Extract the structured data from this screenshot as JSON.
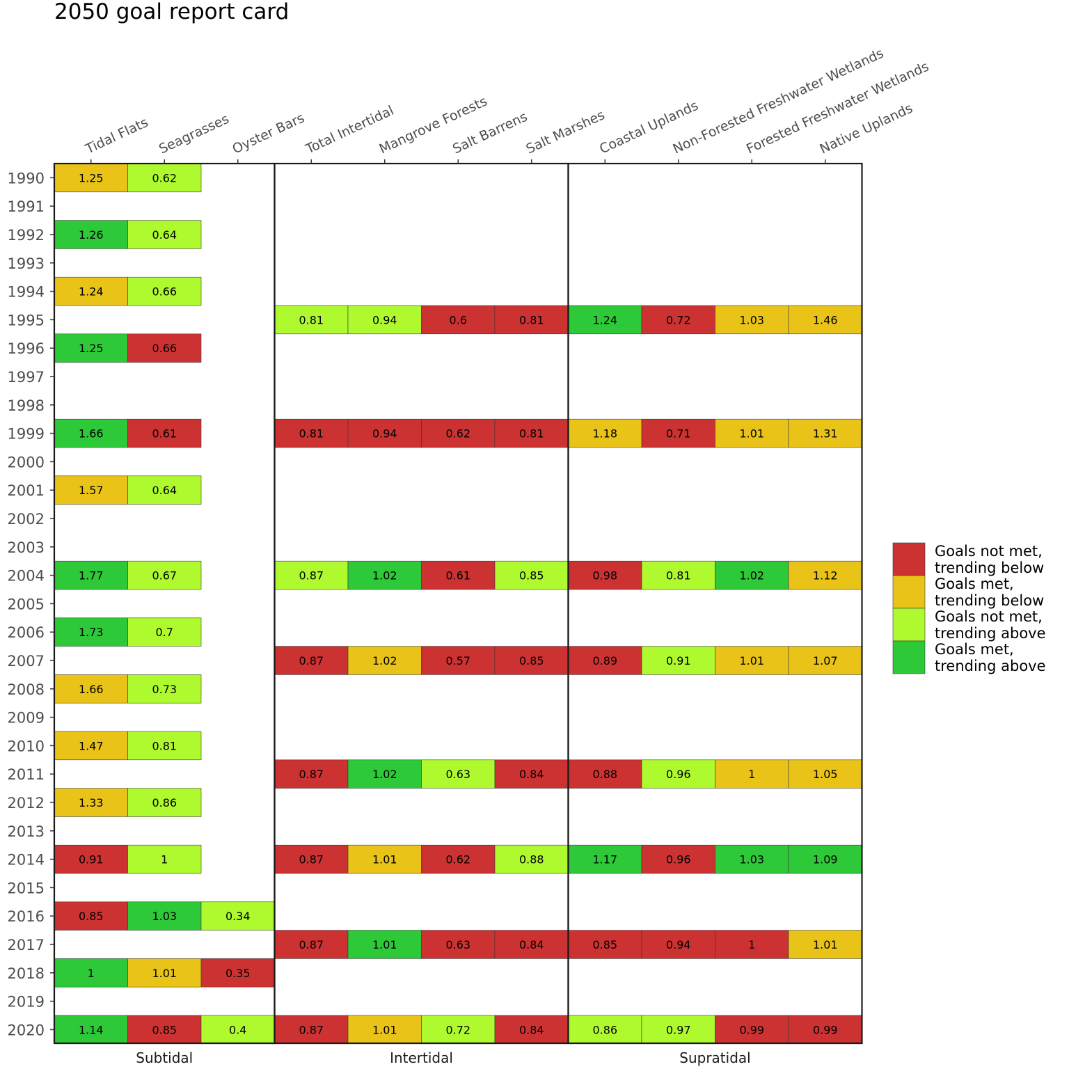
{
  "chart_data": {
    "type": "heatmap",
    "title": "2050 goal report card",
    "years": [
      "1990",
      "1991",
      "1992",
      "1993",
      "1994",
      "1995",
      "1996",
      "1997",
      "1998",
      "1999",
      "2000",
      "2001",
      "2002",
      "2003",
      "2004",
      "2005",
      "2006",
      "2007",
      "2008",
      "2009",
      "2010",
      "2011",
      "2012",
      "2013",
      "2014",
      "2015",
      "2016",
      "2017",
      "2018",
      "2019",
      "2020"
    ],
    "facets": [
      {
        "name": "Subtidal",
        "columns": [
          "Tidal Flats",
          "Seagrasses",
          "Oyster Bars"
        ]
      },
      {
        "name": "Intertidal",
        "columns": [
          "Total Intertidal",
          "Mangrove Forests",
          "Salt Barrens",
          "Salt Marshes"
        ]
      },
      {
        "name": "Supratidal",
        "columns": [
          "Coastal Uplands",
          "Non-Forested Freshwater Wetlands",
          "Forested Freshwater Wetlands",
          "Native Uplands"
        ]
      }
    ],
    "legend": [
      {
        "key": "notmet_below",
        "label_line1": "Goals not met,",
        "label_line2": "trending below",
        "color": "#CC3231"
      },
      {
        "key": "met_below",
        "label_line1": "Goals met,",
        "label_line2": "trending below",
        "color": "#E9C318"
      },
      {
        "key": "notmet_above",
        "label_line1": "Goals not met,",
        "label_line2": "trending above",
        "color": "#AEFA2F"
      },
      {
        "key": "met_above",
        "label_line1": "Goals met,",
        "label_line2": "trending above",
        "color": "#2DC938"
      }
    ],
    "cells": [
      {
        "year": "1990",
        "col": "Tidal Flats",
        "value": "1.25",
        "status": "met_below"
      },
      {
        "year": "1990",
        "col": "Seagrasses",
        "value": "0.62",
        "status": "notmet_above"
      },
      {
        "year": "1992",
        "col": "Tidal Flats",
        "value": "1.26",
        "status": "met_above"
      },
      {
        "year": "1992",
        "col": "Seagrasses",
        "value": "0.64",
        "status": "notmet_above"
      },
      {
        "year": "1994",
        "col": "Tidal Flats",
        "value": "1.24",
        "status": "met_below"
      },
      {
        "year": "1994",
        "col": "Seagrasses",
        "value": "0.66",
        "status": "notmet_above"
      },
      {
        "year": "1995",
        "col": "Total Intertidal",
        "value": "0.81",
        "status": "notmet_above"
      },
      {
        "year": "1995",
        "col": "Mangrove Forests",
        "value": "0.94",
        "status": "notmet_above"
      },
      {
        "year": "1995",
        "col": "Salt Barrens",
        "value": "0.6",
        "status": "notmet_below"
      },
      {
        "year": "1995",
        "col": "Salt Marshes",
        "value": "0.81",
        "status": "notmet_below"
      },
      {
        "year": "1995",
        "col": "Coastal Uplands",
        "value": "1.24",
        "status": "met_above"
      },
      {
        "year": "1995",
        "col": "Non-Forested Freshwater Wetlands",
        "value": "0.72",
        "status": "notmet_below"
      },
      {
        "year": "1995",
        "col": "Forested Freshwater Wetlands",
        "value": "1.03",
        "status": "met_below"
      },
      {
        "year": "1995",
        "col": "Native Uplands",
        "value": "1.46",
        "status": "met_below"
      },
      {
        "year": "1996",
        "col": "Tidal Flats",
        "value": "1.25",
        "status": "met_above"
      },
      {
        "year": "1996",
        "col": "Seagrasses",
        "value": "0.66",
        "status": "notmet_below"
      },
      {
        "year": "1999",
        "col": "Tidal Flats",
        "value": "1.66",
        "status": "met_above"
      },
      {
        "year": "1999",
        "col": "Seagrasses",
        "value": "0.61",
        "status": "notmet_below"
      },
      {
        "year": "1999",
        "col": "Total Intertidal",
        "value": "0.81",
        "status": "notmet_below"
      },
      {
        "year": "1999",
        "col": "Mangrove Forests",
        "value": "0.94",
        "status": "notmet_below"
      },
      {
        "year": "1999",
        "col": "Salt Barrens",
        "value": "0.62",
        "status": "notmet_below"
      },
      {
        "year": "1999",
        "col": "Salt Marshes",
        "value": "0.81",
        "status": "notmet_below"
      },
      {
        "year": "1999",
        "col": "Coastal Uplands",
        "value": "1.18",
        "status": "met_below"
      },
      {
        "year": "1999",
        "col": "Non-Forested Freshwater Wetlands",
        "value": "0.71",
        "status": "notmet_below"
      },
      {
        "year": "1999",
        "col": "Forested Freshwater Wetlands",
        "value": "1.01",
        "status": "met_below"
      },
      {
        "year": "1999",
        "col": "Native Uplands",
        "value": "1.31",
        "status": "met_below"
      },
      {
        "year": "2001",
        "col": "Tidal Flats",
        "value": "1.57",
        "status": "met_below"
      },
      {
        "year": "2001",
        "col": "Seagrasses",
        "value": "0.64",
        "status": "notmet_above"
      },
      {
        "year": "2004",
        "col": "Tidal Flats",
        "value": "1.77",
        "status": "met_above"
      },
      {
        "year": "2004",
        "col": "Seagrasses",
        "value": "0.67",
        "status": "notmet_above"
      },
      {
        "year": "2004",
        "col": "Total Intertidal",
        "value": "0.87",
        "status": "notmet_above"
      },
      {
        "year": "2004",
        "col": "Mangrove Forests",
        "value": "1.02",
        "status": "met_above"
      },
      {
        "year": "2004",
        "col": "Salt Barrens",
        "value": "0.61",
        "status": "notmet_below"
      },
      {
        "year": "2004",
        "col": "Salt Marshes",
        "value": "0.85",
        "status": "notmet_above"
      },
      {
        "year": "2004",
        "col": "Coastal Uplands",
        "value": "0.98",
        "status": "notmet_below"
      },
      {
        "year": "2004",
        "col": "Non-Forested Freshwater Wetlands",
        "value": "0.81",
        "status": "notmet_above"
      },
      {
        "year": "2004",
        "col": "Forested Freshwater Wetlands",
        "value": "1.02",
        "status": "met_above"
      },
      {
        "year": "2004",
        "col": "Native Uplands",
        "value": "1.12",
        "status": "met_below"
      },
      {
        "year": "2006",
        "col": "Tidal Flats",
        "value": "1.73",
        "status": "met_above"
      },
      {
        "year": "2006",
        "col": "Seagrasses",
        "value": "0.7",
        "status": "notmet_above"
      },
      {
        "year": "2007",
        "col": "Total Intertidal",
        "value": "0.87",
        "status": "notmet_below"
      },
      {
        "year": "2007",
        "col": "Mangrove Forests",
        "value": "1.02",
        "status": "met_below"
      },
      {
        "year": "2007",
        "col": "Salt Barrens",
        "value": "0.57",
        "status": "notmet_below"
      },
      {
        "year": "2007",
        "col": "Salt Marshes",
        "value": "0.85",
        "status": "notmet_below"
      },
      {
        "year": "2007",
        "col": "Coastal Uplands",
        "value": "0.89",
        "status": "notmet_below"
      },
      {
        "year": "2007",
        "col": "Non-Forested Freshwater Wetlands",
        "value": "0.91",
        "status": "notmet_above"
      },
      {
        "year": "2007",
        "col": "Forested Freshwater Wetlands",
        "value": "1.01",
        "status": "met_below"
      },
      {
        "year": "2007",
        "col": "Native Uplands",
        "value": "1.07",
        "status": "met_below"
      },
      {
        "year": "2008",
        "col": "Tidal Flats",
        "value": "1.66",
        "status": "met_below"
      },
      {
        "year": "2008",
        "col": "Seagrasses",
        "value": "0.73",
        "status": "notmet_above"
      },
      {
        "year": "2010",
        "col": "Tidal Flats",
        "value": "1.47",
        "status": "met_below"
      },
      {
        "year": "2010",
        "col": "Seagrasses",
        "value": "0.81",
        "status": "notmet_above"
      },
      {
        "year": "2011",
        "col": "Total Intertidal",
        "value": "0.87",
        "status": "notmet_below"
      },
      {
        "year": "2011",
        "col": "Mangrove Forests",
        "value": "1.02",
        "status": "met_above"
      },
      {
        "year": "2011",
        "col": "Salt Barrens",
        "value": "0.63",
        "status": "notmet_above"
      },
      {
        "year": "2011",
        "col": "Salt Marshes",
        "value": "0.84",
        "status": "notmet_below"
      },
      {
        "year": "2011",
        "col": "Coastal Uplands",
        "value": "0.88",
        "status": "notmet_below"
      },
      {
        "year": "2011",
        "col": "Non-Forested Freshwater Wetlands",
        "value": "0.96",
        "status": "notmet_above"
      },
      {
        "year": "2011",
        "col": "Forested Freshwater Wetlands",
        "value": "1",
        "status": "met_below"
      },
      {
        "year": "2011",
        "col": "Native Uplands",
        "value": "1.05",
        "status": "met_below"
      },
      {
        "year": "2012",
        "col": "Tidal Flats",
        "value": "1.33",
        "status": "met_below"
      },
      {
        "year": "2012",
        "col": "Seagrasses",
        "value": "0.86",
        "status": "notmet_above"
      },
      {
        "year": "2014",
        "col": "Tidal Flats",
        "value": "0.91",
        "status": "notmet_below"
      },
      {
        "year": "2014",
        "col": "Seagrasses",
        "value": "1",
        "status": "notmet_above"
      },
      {
        "year": "2014",
        "col": "Total Intertidal",
        "value": "0.87",
        "status": "notmet_below"
      },
      {
        "year": "2014",
        "col": "Mangrove Forests",
        "value": "1.01",
        "status": "met_below"
      },
      {
        "year": "2014",
        "col": "Salt Barrens",
        "value": "0.62",
        "status": "notmet_below"
      },
      {
        "year": "2014",
        "col": "Salt Marshes",
        "value": "0.88",
        "status": "notmet_above"
      },
      {
        "year": "2014",
        "col": "Coastal Uplands",
        "value": "1.17",
        "status": "met_above"
      },
      {
        "year": "2014",
        "col": "Non-Forested Freshwater Wetlands",
        "value": "0.96",
        "status": "notmet_below"
      },
      {
        "year": "2014",
        "col": "Forested Freshwater Wetlands",
        "value": "1.03",
        "status": "met_above"
      },
      {
        "year": "2014",
        "col": "Native Uplands",
        "value": "1.09",
        "status": "met_above"
      },
      {
        "year": "2016",
        "col": "Tidal Flats",
        "value": "0.85",
        "status": "notmet_below"
      },
      {
        "year": "2016",
        "col": "Seagrasses",
        "value": "1.03",
        "status": "met_above"
      },
      {
        "year": "2016",
        "col": "Oyster Bars",
        "value": "0.34",
        "status": "notmet_above"
      },
      {
        "year": "2017",
        "col": "Total Intertidal",
        "value": "0.87",
        "status": "notmet_below"
      },
      {
        "year": "2017",
        "col": "Mangrove Forests",
        "value": "1.01",
        "status": "met_above"
      },
      {
        "year": "2017",
        "col": "Salt Barrens",
        "value": "0.63",
        "status": "notmet_below"
      },
      {
        "year": "2017",
        "col": "Salt Marshes",
        "value": "0.84",
        "status": "notmet_below"
      },
      {
        "year": "2017",
        "col": "Coastal Uplands",
        "value": "0.85",
        "status": "notmet_below"
      },
      {
        "year": "2017",
        "col": "Non-Forested Freshwater Wetlands",
        "value": "0.94",
        "status": "notmet_below"
      },
      {
        "year": "2017",
        "col": "Forested Freshwater Wetlands",
        "value": "1",
        "status": "notmet_below"
      },
      {
        "year": "2017",
        "col": "Native Uplands",
        "value": "1.01",
        "status": "met_below"
      },
      {
        "year": "2018",
        "col": "Tidal Flats",
        "value": "1",
        "status": "met_above"
      },
      {
        "year": "2018",
        "col": "Seagrasses",
        "value": "1.01",
        "status": "met_below"
      },
      {
        "year": "2018",
        "col": "Oyster Bars",
        "value": "0.35",
        "status": "notmet_below"
      },
      {
        "year": "2020",
        "col": "Tidal Flats",
        "value": "1.14",
        "status": "met_above"
      },
      {
        "year": "2020",
        "col": "Seagrasses",
        "value": "0.85",
        "status": "notmet_below"
      },
      {
        "year": "2020",
        "col": "Oyster Bars",
        "value": "0.4",
        "status": "notmet_above"
      },
      {
        "year": "2020",
        "col": "Total Intertidal",
        "value": "0.87",
        "status": "notmet_below"
      },
      {
        "year": "2020",
        "col": "Mangrove Forests",
        "value": "1.01",
        "status": "met_below"
      },
      {
        "year": "2020",
        "col": "Salt Barrens",
        "value": "0.72",
        "status": "notmet_above"
      },
      {
        "year": "2020",
        "col": "Salt Marshes",
        "value": "0.84",
        "status": "notmet_below"
      },
      {
        "year": "2020",
        "col": "Coastal Uplands",
        "value": "0.86",
        "status": "notmet_above"
      },
      {
        "year": "2020",
        "col": "Non-Forested Freshwater Wetlands",
        "value": "0.97",
        "status": "notmet_above"
      },
      {
        "year": "2020",
        "col": "Forested Freshwater Wetlands",
        "value": "0.99",
        "status": "notmet_below"
      },
      {
        "year": "2020",
        "col": "Native Uplands",
        "value": "0.99",
        "status": "notmet_below"
      }
    ]
  }
}
